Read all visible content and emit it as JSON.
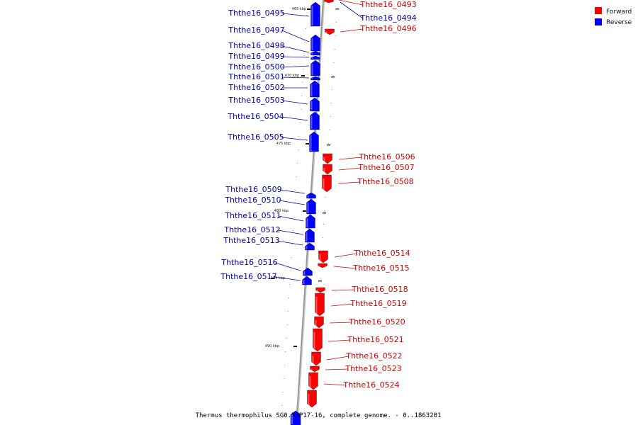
{
  "caption": "Thermus thermophilus SG0.5JP17-16, complete genome. - 0..1863201",
  "legend": {
    "forward_label": "Forward",
    "reverse_label": "Reverse",
    "forward_color": "#ff0000",
    "reverse_color": "#0000ff"
  },
  "colors": {
    "forward_text": "#cc0000",
    "reverse_text": "#0000aa",
    "axis": "#999999"
  },
  "tick_labels": [
    "465 kbp",
    "470 kbp",
    "475 kbp",
    "480 kbp",
    "485 kbp",
    "490 kbp"
  ],
  "genes": {
    "forward": [
      "Ththe16_0493",
      "Ththe16_0496",
      "Ththe16_0506",
      "Ththe16_0507",
      "Ththe16_0508",
      "Ththe16_0514",
      "Ththe16_0515",
      "Ththe16_0518",
      "Ththe16_0519",
      "Ththe16_0520",
      "Ththe16_0521",
      "Ththe16_0522",
      "Ththe16_0523",
      "Ththe16_0524"
    ],
    "reverse": [
      "Ththe16_0494",
      "Ththe16_0495",
      "Ththe16_0497",
      "Ththe16_0498",
      "Ththe16_0499",
      "Ththe16_0500",
      "Ththe16_0501",
      "Ththe16_0502",
      "Ththe16_0503",
      "Ththe16_0504",
      "Ththe16_0505",
      "Ththe16_0509",
      "Ththe16_0510",
      "Ththe16_0511",
      "Ththe16_0512",
      "Ththe16_0513",
      "Ththe16_0516",
      "Ththe16_0517"
    ]
  }
}
